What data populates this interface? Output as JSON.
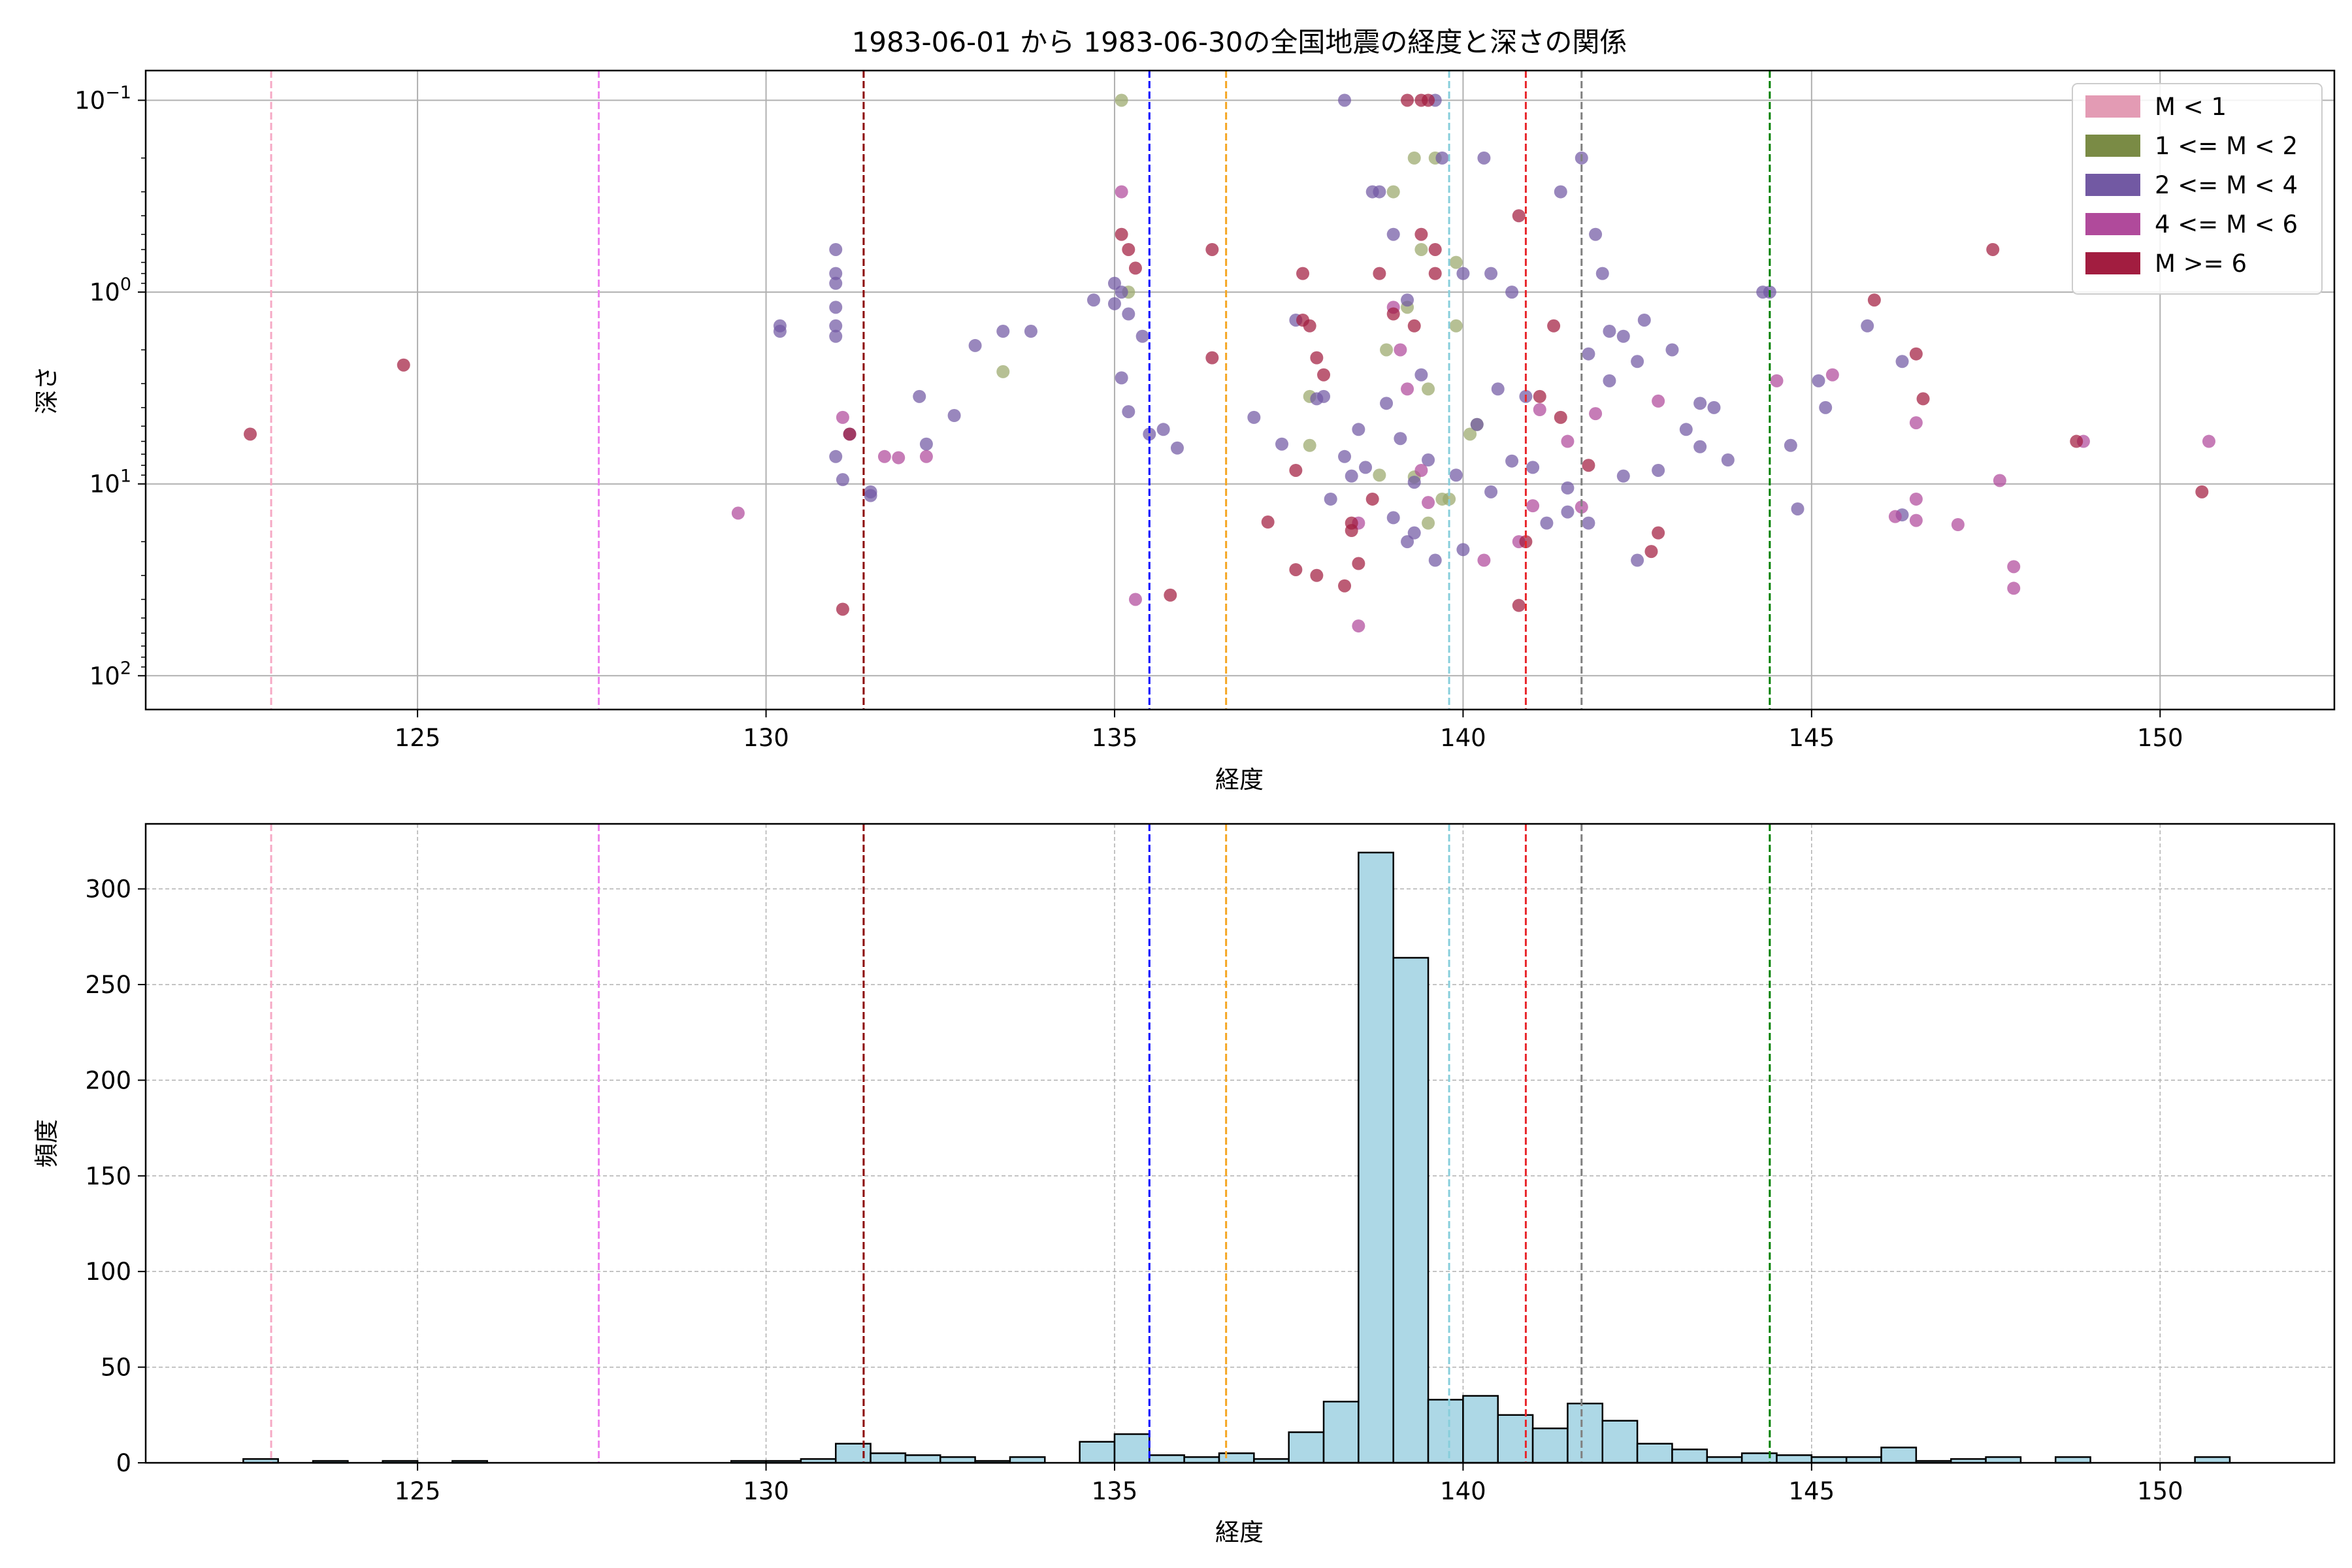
{
  "figure": {
    "title": "1983-06-01 から 1983-06-30の全国地震の経度と深さの関係"
  },
  "chart_data": [
    {
      "type": "scatter",
      "xlabel": "経度",
      "ylabel": "深さ",
      "xlim": [
        121.1,
        152.5
      ],
      "ylim": [
        150,
        0.07
      ],
      "y_scale": "log",
      "y_inverted": true,
      "grid": true,
      "legend_position": "top-right",
      "x_ticks": [
        "125",
        "130",
        "135",
        "140",
        "145",
        "150"
      ],
      "y_ticks": [
        {
          "value": 0.1,
          "base": "10",
          "exp": "−1"
        },
        {
          "value": 1,
          "base": "10",
          "exp": "0"
        },
        {
          "value": 10,
          "base": "10",
          "exp": "1"
        },
        {
          "value": 100,
          "base": "10",
          "exp": "2"
        }
      ],
      "legend": [
        {
          "label": "M < 1",
          "color": "#e39bb4"
        },
        {
          "label": "1 <= M < 2",
          "color": "#7a8b45"
        },
        {
          "label": "2 <= M < 4",
          "color": "#7259a3"
        },
        {
          "label": "4 <= M < 6",
          "color": "#b04a9b"
        },
        {
          "label": "M >= 6",
          "color": "#a21d40"
        }
      ],
      "series": [
        {
          "name": "1 <= M < 2",
          "color": "#9aa86b",
          "points": [
            [
              135.1,
              0.1
            ],
            [
              133.4,
              2.6
            ],
            [
              137.8,
              3.5
            ],
            [
              137.8,
              6.3
            ],
            [
              139.5,
              16
            ],
            [
              139.8,
              12
            ],
            [
              139.9,
              0.7
            ],
            [
              140.1,
              5.5
            ],
            [
              140.2,
              4.9
            ],
            [
              139.6,
              0.2
            ],
            [
              139.3,
              0.2
            ],
            [
              139.0,
              0.3
            ],
            [
              139.4,
              0.6
            ],
            [
              139.2,
              1.2
            ],
            [
              138.9,
              2.0
            ],
            [
              139.5,
              3.2
            ],
            [
              139.7,
              12
            ],
            [
              139.3,
              9.2
            ],
            [
              139.9,
              1.5
            ],
            [
              135.2,
              1.0
            ],
            [
              138.8,
              9.0
            ]
          ]
        },
        {
          "name": "2 <= M < 4",
          "color": "#7259a3",
          "points": [
            [
              131.0,
              0.6
            ],
            [
              131.0,
              0.8
            ],
            [
              131.0,
              1.2
            ],
            [
              131.0,
              1.5
            ],
            [
              131.0,
              1.7
            ],
            [
              131.0,
              0.9
            ],
            [
              130.2,
              1.5
            ],
            [
              130.2,
              1.6
            ],
            [
              131.0,
              7.2
            ],
            [
              131.1,
              9.5
            ],
            [
              131.2,
              5.5
            ],
            [
              131.5,
              11.5
            ],
            [
              131.5,
              11.0
            ],
            [
              132.2,
              3.5
            ],
            [
              132.3,
              6.2
            ],
            [
              132.7,
              4.4
            ],
            [
              133.0,
              1.9
            ],
            [
              133.4,
              1.6
            ],
            [
              133.8,
              1.6
            ],
            [
              134.7,
              1.1
            ],
            [
              135.0,
              0.9
            ],
            [
              135.0,
              1.15
            ],
            [
              135.1,
              1.0
            ],
            [
              135.2,
              1.3
            ],
            [
              135.1,
              2.8
            ],
            [
              135.2,
              4.2
            ],
            [
              135.4,
              1.7
            ],
            [
              135.5,
              5.5
            ],
            [
              135.7,
              5.2
            ],
            [
              135.9,
              6.5
            ],
            [
              137.0,
              4.5
            ],
            [
              137.4,
              6.2
            ],
            [
              137.6,
              1.4
            ],
            [
              138.0,
              3.5
            ],
            [
              138.3,
              0.1
            ],
            [
              138.5,
              5.2
            ],
            [
              138.1,
              12
            ],
            [
              138.3,
              7.2
            ],
            [
              137.9,
              3.6
            ],
            [
              138.6,
              8.2
            ],
            [
              138.7,
              0.3
            ],
            [
              138.4,
              9.1
            ],
            [
              139.0,
              15
            ],
            [
              139.6,
              0.1
            ],
            [
              139.7,
              0.2
            ],
            [
              140.0,
              0.8
            ],
            [
              140.3,
              0.2
            ],
            [
              140.4,
              0.8
            ],
            [
              140.7,
              1.0
            ],
            [
              141.4,
              0.3
            ],
            [
              141.7,
              0.2
            ],
            [
              141.9,
              0.5
            ],
            [
              142.0,
              0.8
            ],
            [
              141.8,
              2.1
            ],
            [
              142.1,
              1.6
            ],
            [
              142.3,
              1.7
            ],
            [
              142.6,
              1.4
            ],
            [
              143.0,
              2.0
            ],
            [
              142.5,
              2.3
            ],
            [
              142.1,
              2.9
            ],
            [
              143.4,
              3.8
            ],
            [
              143.6,
              4.0
            ],
            [
              143.2,
              5.2
            ],
            [
              143.4,
              6.4
            ],
            [
              143.8,
              7.5
            ],
            [
              142.8,
              8.5
            ],
            [
              142.3,
              9.1
            ],
            [
              141.5,
              10.5
            ],
            [
              141.0,
              8.2
            ],
            [
              140.7,
              7.6
            ],
            [
              140.2,
              4.9
            ],
            [
              140.5,
              3.2
            ],
            [
              140.9,
              3.5
            ],
            [
              142.5,
              25
            ],
            [
              141.8,
              16
            ],
            [
              140.4,
              11
            ],
            [
              139.6,
              25
            ],
            [
              139.2,
              20
            ],
            [
              139.3,
              18
            ],
            [
              140.0,
              22
            ],
            [
              141.2,
              16
            ],
            [
              141.5,
              14
            ],
            [
              139.9,
              9
            ],
            [
              144.3,
              1.0
            ],
            [
              144.4,
              1.0
            ],
            [
              144.7,
              6.3
            ],
            [
              144.8,
              13.5
            ],
            [
              145.1,
              2.9
            ],
            [
              145.2,
              4.0
            ],
            [
              146.3,
              2.3
            ],
            [
              146.3,
              14.5
            ],
            [
              145.8,
              1.5
            ],
            [
              138.8,
              0.3
            ],
            [
              139.0,
              0.5
            ],
            [
              139.2,
              1.1
            ],
            [
              139.4,
              2.7
            ],
            [
              138.9,
              3.8
            ],
            [
              139.1,
              5.8
            ],
            [
              139.5,
              7.5
            ],
            [
              139.3,
              9.8
            ]
          ]
        },
        {
          "name": "4 <= M < 6",
          "color": "#b04a9b",
          "points": [
            [
              129.6,
              14.2
            ],
            [
              131.1,
              4.5
            ],
            [
              131.7,
              7.2
            ],
            [
              131.9,
              7.3
            ],
            [
              132.3,
              7.2
            ],
            [
              135.1,
              0.3
            ],
            [
              135.3,
              40
            ],
            [
              138.5,
              55
            ],
            [
              138.5,
              16
            ],
            [
              139.0,
              1.2
            ],
            [
              139.1,
              2.0
            ],
            [
              139.2,
              3.2
            ],
            [
              139.4,
              8.5
            ],
            [
              139.5,
              12.5
            ],
            [
              140.3,
              25
            ],
            [
              140.8,
              20
            ],
            [
              141.0,
              13
            ],
            [
              141.1,
              4.1
            ],
            [
              141.5,
              6
            ],
            [
              141.7,
              13.2
            ],
            [
              141.9,
              4.3
            ],
            [
              142.8,
              3.7
            ],
            [
              144.5,
              2.9
            ],
            [
              146.5,
              4.8
            ],
            [
              146.5,
              12.0
            ],
            [
              146.5,
              15.5
            ],
            [
              147.1,
              16.3
            ],
            [
              147.7,
              9.6
            ],
            [
              147.9,
              27
            ],
            [
              147.9,
              35
            ],
            [
              148.9,
              6.0
            ],
            [
              150.7,
              6.0
            ],
            [
              146.2,
              14.8
            ],
            [
              145.3,
              2.7
            ]
          ]
        },
        {
          "name": "M >= 6",
          "color": "#a21d40",
          "points": [
            [
              122.6,
              5.5
            ],
            [
              124.8,
              2.4
            ],
            [
              131.1,
              45
            ],
            [
              131.2,
              5.5
            ],
            [
              135.1,
              0.5
            ],
            [
              135.2,
              0.6
            ],
            [
              135.3,
              0.75
            ],
            [
              135.8,
              38
            ],
            [
              136.4,
              0.6
            ],
            [
              136.4,
              2.2
            ],
            [
              137.2,
              15.8
            ],
            [
              137.7,
              0.8
            ],
            [
              137.7,
              1.4
            ],
            [
              137.8,
              1.5
            ],
            [
              137.9,
              2.2
            ],
            [
              138.0,
              2.7
            ],
            [
              137.6,
              8.5
            ],
            [
              137.6,
              28
            ],
            [
              137.9,
              30
            ],
            [
              138.3,
              34
            ],
            [
              138.5,
              26
            ],
            [
              138.4,
              16
            ],
            [
              138.4,
              17.5
            ],
            [
              138.7,
              12
            ],
            [
              139.2,
              0.1
            ],
            [
              139.4,
              0.1
            ],
            [
              139.5,
              0.1
            ],
            [
              139.4,
              0.5
            ],
            [
              139.6,
              0.6
            ],
            [
              139.6,
              0.8
            ],
            [
              139.3,
              1.5
            ],
            [
              140.8,
              0.4
            ],
            [
              140.8,
              43
            ],
            [
              140.9,
              20
            ],
            [
              141.1,
              3.5
            ],
            [
              141.3,
              1.5
            ],
            [
              141.4,
              4.5
            ],
            [
              141.8,
              8
            ],
            [
              142.7,
              22.5
            ],
            [
              142.8,
              18
            ],
            [
              145.9,
              1.1
            ],
            [
              146.5,
              2.1
            ],
            [
              146.6,
              3.6
            ],
            [
              147.6,
              0.6
            ],
            [
              148.8,
              6.0
            ],
            [
              150.6,
              11.0
            ],
            [
              139.0,
              1.3
            ],
            [
              138.8,
              0.8
            ]
          ]
        }
      ],
      "vertical_lines": [
        {
          "x": 122.9,
          "color": "#f6a9c5"
        },
        {
          "x": 127.6,
          "color": "#ee82ee"
        },
        {
          "x": 131.4,
          "color": "#8b0000"
        },
        {
          "x": 135.5,
          "color": "#0000ff"
        },
        {
          "x": 136.6,
          "color": "#f5a623"
        },
        {
          "x": 139.8,
          "color": "#87cedb"
        },
        {
          "x": 140.9,
          "color": "#e8262b"
        },
        {
          "x": 141.7,
          "color": "#808080"
        },
        {
          "x": 144.4,
          "color": "#008000"
        }
      ]
    },
    {
      "type": "bar",
      "xlabel": "経度",
      "ylabel": "頻度",
      "xlim": [
        121.1,
        152.5
      ],
      "ylim": [
        0,
        334
      ],
      "grid": true,
      "bin_width": 0.5,
      "x_ticks": [
        "125",
        "130",
        "135",
        "140",
        "145",
        "150"
      ],
      "y_ticks": [
        "0",
        "50",
        "100",
        "150",
        "200",
        "250",
        "300"
      ],
      "bar_color": "#add8e6",
      "bins": [
        [
          122.5,
          2
        ],
        [
          123.5,
          1
        ],
        [
          124.5,
          1
        ],
        [
          125.5,
          1
        ],
        [
          129.5,
          1
        ],
        [
          130.0,
          1
        ],
        [
          130.5,
          2
        ],
        [
          131.0,
          10
        ],
        [
          131.5,
          5
        ],
        [
          132.0,
          4
        ],
        [
          132.5,
          3
        ],
        [
          133.0,
          1
        ],
        [
          133.5,
          3
        ],
        [
          134.5,
          11
        ],
        [
          135.0,
          15
        ],
        [
          135.5,
          4
        ],
        [
          136.0,
          3
        ],
        [
          136.5,
          5
        ],
        [
          137.0,
          2
        ],
        [
          137.5,
          16
        ],
        [
          138.0,
          32
        ],
        [
          138.5,
          319
        ],
        [
          139.0,
          264
        ],
        [
          139.5,
          33
        ],
        [
          140.0,
          35
        ],
        [
          140.5,
          25
        ],
        [
          141.0,
          18
        ],
        [
          141.5,
          31
        ],
        [
          142.0,
          22
        ],
        [
          142.5,
          10
        ],
        [
          143.0,
          7
        ],
        [
          143.5,
          3
        ],
        [
          144.0,
          5
        ],
        [
          144.5,
          4
        ],
        [
          145.0,
          3
        ],
        [
          145.5,
          3
        ],
        [
          146.0,
          8
        ],
        [
          146.5,
          1
        ],
        [
          147.0,
          2
        ],
        [
          147.5,
          3
        ],
        [
          148.5,
          3
        ],
        [
          150.5,
          3
        ]
      ],
      "vertical_lines": [
        {
          "x": 122.9,
          "color": "#f6a9c5"
        },
        {
          "x": 127.6,
          "color": "#ee82ee"
        },
        {
          "x": 131.4,
          "color": "#8b0000"
        },
        {
          "x": 135.5,
          "color": "#0000ff"
        },
        {
          "x": 136.6,
          "color": "#f5a623"
        },
        {
          "x": 139.8,
          "color": "#87cedb"
        },
        {
          "x": 140.9,
          "color": "#e8262b"
        },
        {
          "x": 141.7,
          "color": "#808080"
        },
        {
          "x": 144.4,
          "color": "#008000"
        }
      ]
    }
  ]
}
